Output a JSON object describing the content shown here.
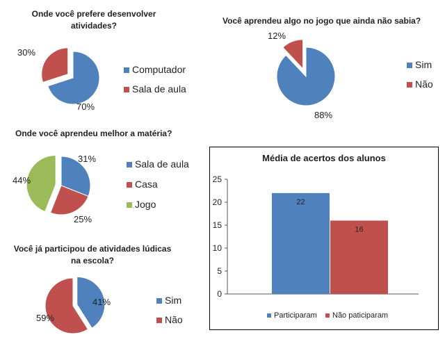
{
  "colors": {
    "blue": "#4f81bd",
    "red": "#c0504d",
    "green": "#9bbb59"
  },
  "chart_data": [
    {
      "type": "pie",
      "title": "Onde você prefere desenvolver atividades?",
      "title_lines": [
        "Onde você prefere desenvolver",
        "atividades?"
      ],
      "categories": [
        "Computador",
        "Sala de aula"
      ],
      "values": [
        70,
        30
      ],
      "labels": [
        "70%",
        "30%"
      ]
    },
    {
      "type": "pie",
      "title": "Você aprendeu algo no jogo que ainda não sabia?",
      "categories": [
        "Sim",
        "Não"
      ],
      "values": [
        88,
        12
      ],
      "labels": [
        "88%",
        "12%"
      ]
    },
    {
      "type": "pie",
      "title": "Onde você aprendeu melhor a matéria?",
      "categories": [
        "Sala de aula",
        "Casa",
        "Jogo"
      ],
      "values": [
        31,
        25,
        44
      ],
      "labels": [
        "31%",
        "25%",
        "44%"
      ]
    },
    {
      "type": "pie",
      "title": "Você já participou de atividades lúdicas na escola?",
      "title_lines": [
        "Você já participou  de atividades lúdicas",
        "na escola?"
      ],
      "categories": [
        "Sim",
        "Não"
      ],
      "values": [
        41,
        59
      ],
      "labels": [
        "41%",
        "59%"
      ]
    },
    {
      "type": "bar",
      "title": "Média de acertos dos alunos",
      "categories": [
        "Participaram",
        "Não paticiparam"
      ],
      "values": [
        22,
        16
      ],
      "data_labels": [
        "22",
        "16"
      ],
      "ylim": [
        0,
        25
      ],
      "yticks": [
        "0",
        "5",
        "10",
        "15",
        "20",
        "25"
      ],
      "legend_position": "bottom",
      "grid": false
    }
  ]
}
